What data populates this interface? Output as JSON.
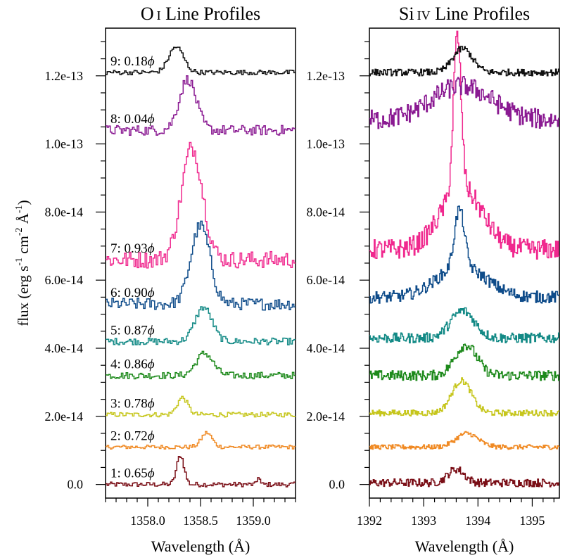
{
  "figure": {
    "ylabel": "flux (erg s",
    "ylabel_sup1": "-1",
    "ylabel_mid": " cm",
    "ylabel_sup2": "-2",
    "ylabel_A": " Å",
    "ylabel_sup3": "-1",
    "ylabel_end": ")",
    "phase_symbol": "ϕ"
  },
  "chart_data": [
    {
      "type": "line",
      "title_main": "O",
      "title_ion": "I",
      "title_rest": " Line Profiles",
      "xlabel": "Wavelength (Å)",
      "xlim": [
        1357.6,
        1359.4
      ],
      "ylim": [
        -4e-15,
        1.34e-13
      ],
      "xticks": [
        1358.0,
        1358.5,
        1359.0
      ],
      "xtick_labels": [
        "1358.0",
        "1358.5",
        "1359.0"
      ],
      "yticks": [
        0,
        2e-14,
        4e-14,
        6e-14,
        8e-14,
        1e-13,
        1.2e-13
      ],
      "ytick_labels": [
        "0.0",
        "2.0e-14",
        "4.0e-14",
        "6.0e-14",
        "8.0e-14",
        "1.0e-13",
        "1.2e-13"
      ],
      "series": [
        {
          "label": "1: 0.65",
          "color": "#7a0e16",
          "offset": 0.0,
          "peak": 8.5e-15,
          "center": 1358.31,
          "width": 0.035,
          "noise": 7e-16,
          "extra": [
            [
              1359.05,
              2.5e-15,
              0.012
            ]
          ]
        },
        {
          "label": "2: 0.72",
          "color": "#f08a24",
          "offset": 1.1e-14,
          "peak": 4.2e-15,
          "center": 1358.56,
          "width": 0.05,
          "noise": 6e-16
        },
        {
          "label": "3: 0.78",
          "color": "#c6c61c",
          "offset": 2.05e-14,
          "peak": 5e-15,
          "center": 1358.33,
          "width": 0.05,
          "noise": 7e-16
        },
        {
          "label": "4: 0.86",
          "color": "#1e8a1c",
          "offset": 3.2e-14,
          "peak": 6.5e-15,
          "center": 1358.54,
          "width": 0.08,
          "noise": 1e-15
        },
        {
          "label": "5: 0.87",
          "color": "#138a86",
          "offset": 4.2e-14,
          "peak": 1e-14,
          "center": 1358.53,
          "width": 0.08,
          "noise": 1e-15
        },
        {
          "label": "6: 0.90",
          "color": "#0f4c8a",
          "offset": 5.3e-14,
          "peak": 2.3e-14,
          "center": 1358.5,
          "width": 0.09,
          "noise": 1.8e-15
        },
        {
          "label": "7: 0.93",
          "color": "#f0288e",
          "offset": 6.6e-14,
          "peak": 3.3e-14,
          "center": 1358.42,
          "width": 0.1,
          "noise": 2.5e-15
        },
        {
          "label": "8: 0.04",
          "color": "#8a1a92",
          "offset": 1.04e-13,
          "peak": 1.5e-14,
          "center": 1358.38,
          "width": 0.08,
          "noise": 1.5e-15
        },
        {
          "label": "9: 0.18",
          "color": "#111111",
          "offset": 1.21e-13,
          "peak": 7.5e-15,
          "center": 1358.27,
          "width": 0.07,
          "noise": 7e-16
        }
      ]
    },
    {
      "type": "line",
      "title_main": "Si",
      "title_ion": "IV",
      "title_rest": " Line Profiles",
      "xlabel": "Wavelength (Å)",
      "xlim": [
        1392.0,
        1395.5
      ],
      "ylim": [
        -4e-15,
        1.34e-13
      ],
      "xticks": [
        1392,
        1393,
        1394,
        1395
      ],
      "xtick_labels": [
        "1392",
        "1393",
        "1394",
        "1395"
      ],
      "yticks": [
        0,
        2e-14,
        4e-14,
        6e-14,
        8e-14,
        1e-13,
        1.2e-13
      ],
      "ytick_labels": [
        "0.0",
        "2.0e-14",
        "4.0e-14",
        "6.0e-14",
        "8.0e-14",
        "1.0e-13",
        "1.2e-13"
      ],
      "series": [
        {
          "color": "#7a0e16",
          "offset": 5e-16,
          "peak": 4e-15,
          "center": 1393.6,
          "width": 0.15,
          "noise": 1.2e-15
        },
        {
          "color": "#f08a24",
          "offset": 1.1e-14,
          "peak": 4e-15,
          "center": 1393.8,
          "width": 0.2,
          "noise": 7e-16
        },
        {
          "color": "#c6c61c",
          "offset": 2.1e-14,
          "peak": 9.5e-15,
          "center": 1393.7,
          "width": 0.18,
          "noise": 9e-16
        },
        {
          "color": "#1e8a1c",
          "offset": 3.2e-14,
          "peak": 9e-15,
          "center": 1393.78,
          "width": 0.2,
          "noise": 1.5e-15
        },
        {
          "color": "#138a86",
          "offset": 4.3e-14,
          "peak": 8e-15,
          "center": 1393.72,
          "width": 0.22,
          "noise": 1.5e-15
        },
        {
          "color": "#0f4c8a",
          "offset": 5.5e-14,
          "peak": 1.7e-14,
          "center": 1393.66,
          "width": 0.09,
          "noise": 1.8e-15,
          "wing": [
            1393.7,
            9e-15,
            0.45
          ]
        },
        {
          "color": "#f0288e",
          "offset": 6.9e-14,
          "peak": 4.5e-14,
          "center": 1393.62,
          "width": 0.07,
          "noise": 3e-15,
          "wing": [
            1393.7,
            1.8e-14,
            0.38
          ]
        },
        {
          "color": "#8a1a92",
          "offset": 1.07e-13,
          "peak": 1e-14,
          "center": 1393.7,
          "width": 0.55,
          "noise": 3e-15
        },
        {
          "color": "#111111",
          "offset": 1.21e-13,
          "peak": 7e-15,
          "center": 1393.72,
          "width": 0.18,
          "noise": 1e-15
        }
      ]
    }
  ]
}
